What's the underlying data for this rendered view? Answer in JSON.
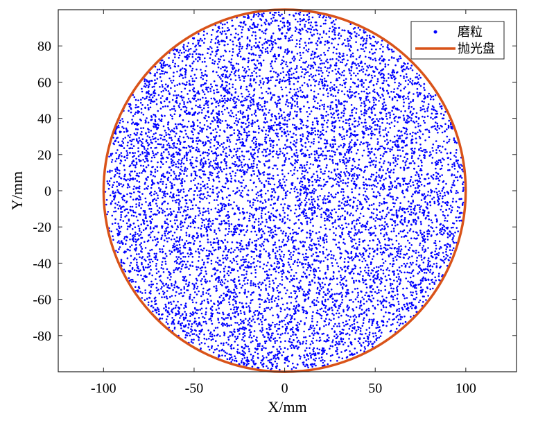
{
  "chart_data": {
    "type": "scatter",
    "title": "",
    "xlabel": "X/mm",
    "ylabel": "Y/mm",
    "xlim": [
      -125,
      128
    ],
    "ylim": [
      -100,
      100
    ],
    "xticks": [
      -100,
      -50,
      0,
      50,
      100
    ],
    "yticks": [
      -80,
      -60,
      -40,
      -20,
      0,
      20,
      40,
      60,
      80
    ],
    "xtick_labels": [
      "-100",
      "-50",
      "0",
      "50",
      "100"
    ],
    "ytick_labels": [
      "-80",
      "-60",
      "-40",
      "-20",
      "0",
      "20",
      "40",
      "60",
      "80"
    ],
    "grid": false,
    "legend_position": "top-right",
    "series": [
      {
        "name": "磨粒",
        "kind": "points",
        "color": "#0000ff",
        "distribution": "uniform random within circle",
        "center": [
          0,
          0
        ],
        "radius": 100,
        "point_count": 9000
      },
      {
        "name": "抛光盘",
        "kind": "circle",
        "color": "#d95319",
        "center": [
          0,
          0
        ],
        "radius": 100
      }
    ]
  }
}
